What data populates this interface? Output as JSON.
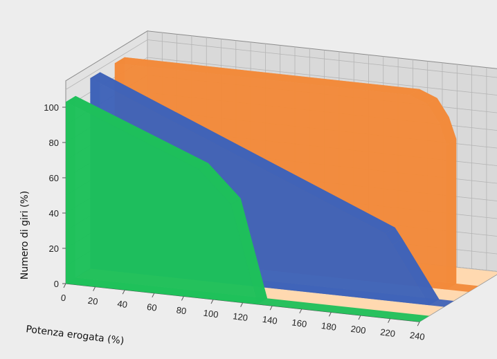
{
  "chart_data": {
    "type": "area",
    "style": "3d",
    "xlabel": "Potenza erogata (%)",
    "ylabel": "Numero di giri (%)",
    "xlim": [
      0,
      240
    ],
    "ylim": [
      0,
      110
    ],
    "x_ticks": [
      0,
      20,
      40,
      60,
      80,
      100,
      120,
      140,
      160,
      180,
      200,
      220,
      240
    ],
    "y_ticks": [
      0,
      20,
      40,
      60,
      80,
      100
    ],
    "grid": true,
    "legend": "none",
    "series": [
      {
        "color": "#f28a3a",
        "points": [
          [
            0,
            108
          ],
          [
            200,
            108
          ],
          [
            212,
            104
          ],
          [
            220,
            94
          ],
          [
            225,
            82
          ],
          [
            225,
            0
          ]
        ]
      },
      {
        "color": "#3f63b8",
        "points": [
          [
            0,
            108
          ],
          [
            200,
            38
          ],
          [
            205,
            32
          ],
          [
            230,
            0
          ]
        ]
      },
      {
        "color": "#1ec05a",
        "points": [
          [
            0,
            103
          ],
          [
            90,
            73
          ],
          [
            112,
            55
          ],
          [
            130,
            0
          ]
        ]
      }
    ]
  }
}
